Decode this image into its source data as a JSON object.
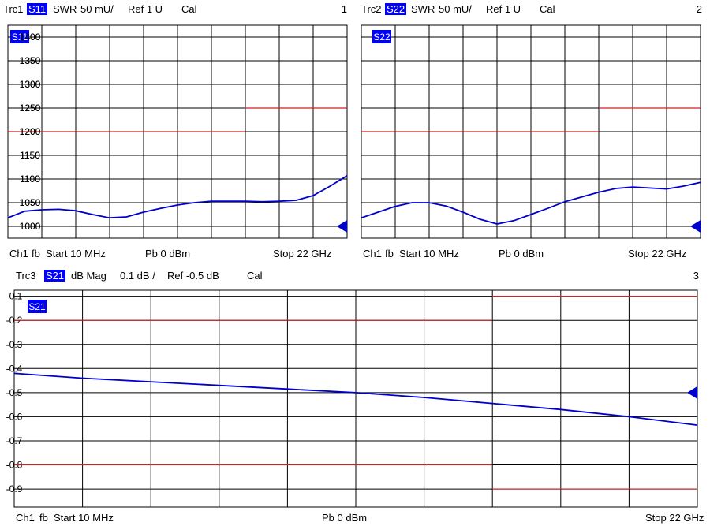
{
  "colors": {
    "trace": "#0000cc",
    "limit": "#cc2222",
    "grid": "#000000",
    "tag_bg": "#0000ff",
    "background": "#ffffff"
  },
  "panels": [
    {
      "header": {
        "trace": "Trc1",
        "param": "S11",
        "format": "SWR",
        "scale": "50 mU/",
        "ref": "Ref 1 U",
        "cal": "Cal",
        "number": "1"
      },
      "footer": {
        "channel": "Ch1",
        "fb": "fb",
        "start": "Start 10 MHz",
        "power": "Pb 0 dBm",
        "stop": "Stop 22 GHz"
      },
      "marker_icon": "ref-level-triangle-icon"
    },
    {
      "header": {
        "trace": "Trc2",
        "param": "S22",
        "format": "SWR",
        "scale": "50 mU/",
        "ref": "Ref 1 U",
        "cal": "Cal",
        "number": "2"
      },
      "footer": {
        "channel": "Ch1",
        "fb": "fb",
        "start": "Start 10 MHz",
        "power": "Pb 0 dBm",
        "stop": "Stop 22 GHz"
      },
      "marker_icon": "ref-level-triangle-icon"
    },
    {
      "header": {
        "trace": "Trc3",
        "param": "S21",
        "format": "dB Mag",
        "scale": "0.1 dB /",
        "ref": "Ref -0.5 dB",
        "cal": "Cal",
        "number": "3"
      },
      "footer": {
        "channel": "Ch1",
        "fb": "fb",
        "start": "Start 10 MHz",
        "power": "Pb 0 dBm",
        "stop": "Stop 22 GHz"
      },
      "marker_icon": "ref-level-triangle-icon"
    }
  ],
  "chart_data": [
    {
      "type": "line",
      "trace_label": "S11",
      "xlim": [
        0.01,
        22
      ],
      "ylim": [
        975,
        1425
      ],
      "yticks": [
        1000,
        1050,
        1100,
        1150,
        1200,
        1250,
        1300,
        1350,
        1400
      ],
      "ytick_labels": [
        "1000",
        "1050",
        "1100",
        "1150",
        "1200",
        "1250",
        "1300",
        "1350",
        "1400"
      ],
      "grid_divisions": {
        "x": 10,
        "y": 9
      },
      "grid": true,
      "ref_level": 1000,
      "limit_lines": [
        {
          "x": [
            0.01,
            15.4
          ],
          "y": 1200
        },
        {
          "x": [
            15.4,
            22
          ],
          "y": 1250
        }
      ],
      "x": [
        0.01,
        1.1,
        2.2,
        3.3,
        4.4,
        5.5,
        6.6,
        7.7,
        8.8,
        9.9,
        11,
        12.1,
        13.2,
        14.3,
        15.4,
        16.5,
        17.6,
        18.7,
        19.8,
        20.9,
        22
      ],
      "values": [
        1018,
        1032,
        1035,
        1036,
        1033,
        1025,
        1018,
        1020,
        1030,
        1038,
        1045,
        1050,
        1053,
        1053,
        1053,
        1052,
        1053,
        1055,
        1065,
        1085,
        1107
      ]
    },
    {
      "type": "line",
      "trace_label": "S22",
      "xlim": [
        0.01,
        22
      ],
      "ylim": [
        975,
        1425
      ],
      "yticks": [
        1000,
        1050,
        1100,
        1150,
        1200,
        1250,
        1300,
        1350,
        1400
      ],
      "ytick_labels": [
        "1000",
        "1050",
        "1100",
        "1150",
        "1200",
        "1250",
        "1300",
        "1350",
        "1400"
      ],
      "grid_divisions": {
        "x": 10,
        "y": 9
      },
      "grid": true,
      "ref_level": 1000,
      "limit_lines": [
        {
          "x": [
            0.01,
            15.4
          ],
          "y": 1200
        },
        {
          "x": [
            15.4,
            22
          ],
          "y": 1250
        }
      ],
      "x": [
        0.01,
        1.1,
        2.2,
        3.3,
        4.4,
        5.5,
        6.6,
        7.7,
        8.8,
        9.9,
        11,
        12.1,
        13.2,
        14.3,
        15.4,
        16.5,
        17.6,
        18.7,
        19.8,
        20.9,
        22
      ],
      "values": [
        1018,
        1030,
        1042,
        1050,
        1050,
        1043,
        1030,
        1015,
        1005,
        1012,
        1025,
        1038,
        1052,
        1062,
        1072,
        1080,
        1083,
        1081,
        1079,
        1085,
        1093
      ]
    },
    {
      "type": "line",
      "trace_label": "S21",
      "xlim": [
        0.01,
        22
      ],
      "ylim": [
        -0.975,
        -0.075
      ],
      "yticks": [
        -0.1,
        -0.2,
        -0.3,
        -0.4,
        -0.5,
        -0.6,
        -0.7,
        -0.8,
        -0.9
      ],
      "ytick_labels": [
        "-0.1",
        "-0.2",
        "-0.3",
        "-0.4",
        "-0.5",
        "-0.6",
        "-0.7",
        "-0.8",
        "-0.9"
      ],
      "grid_divisions": {
        "x": 10,
        "y": 9
      },
      "grid": true,
      "ref_level": -0.5,
      "limit_lines": [
        {
          "x": [
            15.4,
            22
          ],
          "y": -0.1
        },
        {
          "x": [
            0.01,
            15.4
          ],
          "y": -0.2
        },
        {
          "x": [
            0.01,
            15.4
          ],
          "y": -0.8
        },
        {
          "x": [
            15.4,
            22
          ],
          "y": -0.9
        }
      ],
      "x": [
        0.01,
        2.2,
        4.4,
        6.6,
        8.8,
        11,
        13.2,
        15.4,
        17.6,
        19.8,
        22
      ],
      "values": [
        -0.42,
        -0.44,
        -0.455,
        -0.47,
        -0.485,
        -0.5,
        -0.52,
        -0.545,
        -0.57,
        -0.6,
        -0.635
      ]
    }
  ]
}
